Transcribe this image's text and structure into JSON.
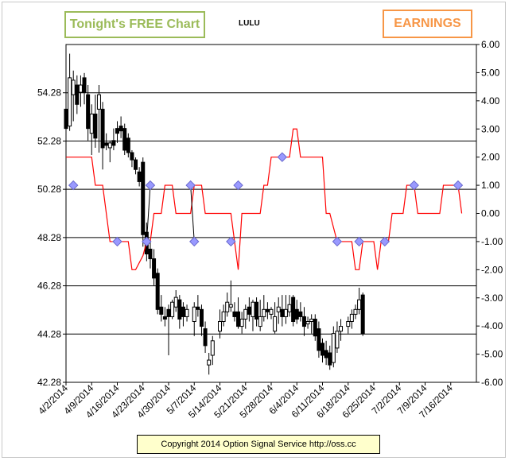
{
  "header": {
    "free_chart_label": "Tonight's FREE Chart",
    "ticker": "LULU",
    "earnings_label": "EARNINGS"
  },
  "footer": {
    "copyright": "Copyright 2014 Option Signal Service http://oss.cc"
  },
  "colors": {
    "signal_line": "#ff0000",
    "marker_fill": "#9999ff",
    "marker_stroke": "#6666cc",
    "free_badge": "#9bbb59",
    "earnings_badge": "#f79646",
    "candle": "#000000"
  },
  "chart_data": {
    "type": "candlestick",
    "title": "LULU",
    "grid": "horizontal",
    "y_left": {
      "ticks": [
        "42.28",
        "44.28",
        "46.28",
        "48.28",
        "50.28",
        "52.28",
        "54.28"
      ],
      "min": 42.28,
      "max": 56.28
    },
    "y_right": {
      "ticks": [
        "-6.00",
        "-5.00",
        "-4.00",
        "-3.00",
        "-2.00",
        "-1.00",
        "0.00",
        "1.00",
        "2.00",
        "3.00",
        "4.00",
        "5.00",
        "6.00"
      ],
      "min": -6,
      "max": 6
    },
    "x": {
      "ticks": [
        "4/2/2014",
        "4/9/2014",
        "4/16/2014",
        "4/23/2014",
        "4/30/2014",
        "5/7/2014",
        "5/14/2014",
        "5/21/2014",
        "5/28/2014",
        "6/4/2014",
        "6/11/2014",
        "6/18/2014",
        "6/25/2014",
        "7/2/2014",
        "7/9/2014",
        "7/16/2014"
      ],
      "range_days": [
        0,
        112
      ]
    },
    "candles": [
      {
        "d": 0,
        "o": 53.6,
        "h": 55.4,
        "l": 52.4,
        "c": 52.8
      },
      {
        "d": 1,
        "o": 52.9,
        "h": 55.9,
        "l": 52.7,
        "c": 54.9
      },
      {
        "d": 2,
        "o": 54.2,
        "h": 55.2,
        "l": 53.1,
        "c": 54.8
      },
      {
        "d": 3,
        "o": 54.6,
        "h": 55.0,
        "l": 53.4,
        "c": 53.8
      },
      {
        "d": 4,
        "o": 54.3,
        "h": 55.0,
        "l": 53.7,
        "c": 54.6
      },
      {
        "d": 5,
        "o": 54.9,
        "h": 55.1,
        "l": 53.8,
        "c": 54.3
      },
      {
        "d": 6,
        "o": 54.2,
        "h": 54.6,
        "l": 52.3,
        "c": 52.8
      },
      {
        "d": 7,
        "o": 52.6,
        "h": 53.8,
        "l": 51.7,
        "c": 53.4
      },
      {
        "d": 8,
        "o": 53.4,
        "h": 54.2,
        "l": 52.0,
        "c": 52.4
      },
      {
        "d": 9,
        "o": 53.6,
        "h": 54.6,
        "l": 51.8,
        "c": 54.2
      },
      {
        "d": 10,
        "o": 53.6,
        "h": 53.9,
        "l": 51.1,
        "c": 52.0
      },
      {
        "d": 11,
        "o": 52.2,
        "h": 52.6,
        "l": 51.9,
        "c": 52.1
      },
      {
        "d": 12,
        "o": 52.0,
        "h": 52.3,
        "l": 51.4,
        "c": 52.2
      },
      {
        "d": 13,
        "o": 52.3,
        "h": 52.8,
        "l": 51.9,
        "c": 52.1
      },
      {
        "d": 14,
        "o": 52.8,
        "h": 53.1,
        "l": 52.2,
        "c": 52.6
      },
      {
        "d": 15,
        "o": 52.9,
        "h": 53.3,
        "l": 52.4,
        "c": 52.7
      },
      {
        "d": 16,
        "o": 52.8,
        "h": 53.0,
        "l": 51.7,
        "c": 51.9
      },
      {
        "d": 17,
        "o": 52.4,
        "h": 52.6,
        "l": 51.6,
        "c": 51.8
      },
      {
        "d": 18,
        "o": 51.8,
        "h": 51.9,
        "l": 51.2,
        "c": 51.5
      },
      {
        "d": 19,
        "o": 51.5,
        "h": 51.6,
        "l": 50.9,
        "c": 51.1
      },
      {
        "d": 20,
        "o": 51.0,
        "h": 51.2,
        "l": 50.4,
        "c": 50.6
      },
      {
        "d": 21,
        "o": 51.4,
        "h": 51.6,
        "l": 47.9,
        "c": 48.4
      },
      {
        "d": 22,
        "o": 48.5,
        "h": 48.9,
        "l": 47.3,
        "c": 47.6
      },
      {
        "d": 23,
        "o": 47.8,
        "h": 48.1,
        "l": 47.0,
        "c": 47.4
      },
      {
        "d": 24,
        "o": 47.4,
        "h": 47.8,
        "l": 46.3,
        "c": 46.6
      },
      {
        "d": 25,
        "o": 46.8,
        "h": 47.0,
        "l": 45.1,
        "c": 45.3
      },
      {
        "d": 26,
        "o": 45.4,
        "h": 45.9,
        "l": 44.8,
        "c": 45.1
      },
      {
        "d": 27,
        "o": 45.0,
        "h": 45.4,
        "l": 44.6,
        "c": 44.9
      },
      {
        "d": 28,
        "o": 45.3,
        "h": 45.5,
        "l": 43.4,
        "c": 45.0
      },
      {
        "d": 29,
        "o": 45.0,
        "h": 45.7,
        "l": 44.9,
        "c": 45.6
      },
      {
        "d": 30,
        "o": 45.4,
        "h": 46.1,
        "l": 45.2,
        "c": 45.8
      },
      {
        "d": 31,
        "o": 45.7,
        "h": 45.9,
        "l": 44.5,
        "c": 44.9
      },
      {
        "d": 32,
        "o": 45.4,
        "h": 45.6,
        "l": 44.6,
        "c": 45.0
      },
      {
        "d": 33,
        "o": 45.0,
        "h": 45.5,
        "l": 44.8,
        "c": 45.3
      },
      {
        "d": 35,
        "o": 44.8,
        "h": 45.6,
        "l": 44.2,
        "c": 45.4
      },
      {
        "d": 36,
        "o": 45.4,
        "h": 45.9,
        "l": 45.0,
        "c": 45.3
      },
      {
        "d": 37,
        "o": 45.3,
        "h": 45.5,
        "l": 44.2,
        "c": 44.6
      },
      {
        "d": 38,
        "o": 44.5,
        "h": 44.8,
        "l": 43.5,
        "c": 43.8
      },
      {
        "d": 39,
        "o": 43.0,
        "h": 43.5,
        "l": 42.6,
        "c": 43.2
      },
      {
        "d": 40,
        "o": 43.4,
        "h": 44.2,
        "l": 43.0,
        "c": 44.0
      },
      {
        "d": 42,
        "o": 44.4,
        "h": 45.3,
        "l": 44.1,
        "c": 44.8
      },
      {
        "d": 43,
        "o": 44.8,
        "h": 45.5,
        "l": 44.6,
        "c": 45.2
      },
      {
        "d": 44,
        "o": 45.2,
        "h": 46.0,
        "l": 45.0,
        "c": 45.6
      },
      {
        "d": 45,
        "o": 45.4,
        "h": 46.5,
        "l": 45.2,
        "c": 45.5
      },
      {
        "d": 46,
        "o": 45.2,
        "h": 45.6,
        "l": 44.8,
        "c": 45.0
      },
      {
        "d": 47,
        "o": 45.2,
        "h": 45.8,
        "l": 44.5,
        "c": 44.6
      },
      {
        "d": 48,
        "o": 44.6,
        "h": 45.2,
        "l": 44.3,
        "c": 44.9
      },
      {
        "d": 49,
        "o": 44.9,
        "h": 45.5,
        "l": 44.5,
        "c": 45.3
      },
      {
        "d": 50,
        "o": 45.4,
        "h": 45.8,
        "l": 44.8,
        "c": 45.1
      },
      {
        "d": 51,
        "o": 45.0,
        "h": 45.7,
        "l": 44.4,
        "c": 45.6
      },
      {
        "d": 52,
        "o": 45.6,
        "h": 45.8,
        "l": 44.6,
        "c": 44.9
      },
      {
        "d": 53,
        "o": 44.6,
        "h": 45.7,
        "l": 44.4,
        "c": 45.0
      },
      {
        "d": 54,
        "o": 45.0,
        "h": 45.9,
        "l": 44.8,
        "c": 45.3
      },
      {
        "d": 55,
        "o": 45.3,
        "h": 45.6,
        "l": 44.9,
        "c": 45.2
      },
      {
        "d": 56,
        "o": 45.1,
        "h": 45.4,
        "l": 44.9,
        "c": 45.3
      },
      {
        "d": 57,
        "o": 44.4,
        "h": 45.6,
        "l": 44.3,
        "c": 45.0
      },
      {
        "d": 58,
        "o": 45.2,
        "h": 45.8,
        "l": 44.7,
        "c": 45.4
      },
      {
        "d": 59,
        "o": 45.3,
        "h": 45.9,
        "l": 44.6,
        "c": 45.0
      },
      {
        "d": 60,
        "o": 45.0,
        "h": 45.9,
        "l": 44.7,
        "c": 45.3
      },
      {
        "d": 61,
        "o": 45.2,
        "h": 45.9,
        "l": 45.0,
        "c": 45.5
      },
      {
        "d": 62,
        "o": 45.8,
        "h": 45.9,
        "l": 44.6,
        "c": 44.8
      },
      {
        "d": 63,
        "o": 45.3,
        "h": 45.7,
        "l": 44.7,
        "c": 44.9
      },
      {
        "d": 64,
        "o": 45.2,
        "h": 45.6,
        "l": 44.8,
        "c": 45.0
      },
      {
        "d": 65,
        "o": 45.0,
        "h": 45.4,
        "l": 44.2,
        "c": 44.6
      },
      {
        "d": 66,
        "o": 44.7,
        "h": 45.0,
        "l": 44.5,
        "c": 44.8
      },
      {
        "d": 67,
        "o": 44.8,
        "h": 45.1,
        "l": 44.3,
        "c": 44.9
      },
      {
        "d": 68,
        "o": 44.9,
        "h": 45.1,
        "l": 44.0,
        "c": 44.2
      },
      {
        "d": 69,
        "o": 44.5,
        "h": 44.8,
        "l": 43.3,
        "c": 43.6
      },
      {
        "d": 70,
        "o": 43.9,
        "h": 44.1,
        "l": 43.1,
        "c": 43.4
      },
      {
        "d": 71,
        "o": 43.6,
        "h": 44.0,
        "l": 43.0,
        "c": 43.3
      },
      {
        "d": 72,
        "o": 43.5,
        "h": 43.8,
        "l": 42.8,
        "c": 43.0
      },
      {
        "d": 73,
        "o": 43.1,
        "h": 44.6,
        "l": 42.9,
        "c": 44.3
      },
      {
        "d": 74,
        "o": 43.7,
        "h": 44.8,
        "l": 43.5,
        "c": 44.4
      },
      {
        "d": 75,
        "o": 44.4,
        "h": 44.9,
        "l": 44.0,
        "c": 44.6
      },
      {
        "d": 77,
        "o": 44.6,
        "h": 45.0,
        "l": 44.3,
        "c": 44.8
      },
      {
        "d": 78,
        "o": 44.8,
        "h": 45.3,
        "l": 44.5,
        "c": 45.1
      },
      {
        "d": 79,
        "o": 45.1,
        "h": 45.5,
        "l": 44.9,
        "c": 45.3
      },
      {
        "d": 80,
        "o": 45.3,
        "h": 46.2,
        "l": 45.1,
        "c": 45.7
      },
      {
        "d": 81,
        "o": 45.9,
        "h": 46.0,
        "l": 44.2,
        "c": 44.3
      }
    ],
    "signal_line": [
      {
        "d": 0,
        "v": 2
      },
      {
        "d": 7,
        "v": 2
      },
      {
        "d": 8,
        "v": 1
      },
      {
        "d": 10,
        "v": 1
      },
      {
        "d": 12,
        "v": -1
      },
      {
        "d": 17,
        "v": -1
      },
      {
        "d": 18,
        "v": -2
      },
      {
        "d": 19,
        "v": -2
      },
      {
        "d": 21,
        "v": -1.5
      },
      {
        "d": 22,
        "v": -1
      },
      {
        "d": 23,
        "v": -1
      },
      {
        "d": 24,
        "v": 0
      },
      {
        "d": 26,
        "v": 0
      },
      {
        "d": 27,
        "v": 1
      },
      {
        "d": 29,
        "v": 1
      },
      {
        "d": 30,
        "v": 0
      },
      {
        "d": 34,
        "v": 0
      },
      {
        "d": 35,
        "v": 1
      },
      {
        "d": 37,
        "v": 1
      },
      {
        "d": 38,
        "v": 0
      },
      {
        "d": 45,
        "v": 0
      },
      {
        "d": 46,
        "v": -1
      },
      {
        "d": 47,
        "v": -2
      },
      {
        "d": 48,
        "v": 0
      },
      {
        "d": 53,
        "v": 0
      },
      {
        "d": 54,
        "v": 1
      },
      {
        "d": 55,
        "v": 1
      },
      {
        "d": 56,
        "v": 2
      },
      {
        "d": 61,
        "v": 2
      },
      {
        "d": 62,
        "v": 3
      },
      {
        "d": 63,
        "v": 3
      },
      {
        "d": 64,
        "v": 2
      },
      {
        "d": 70,
        "v": 2
      },
      {
        "d": 71,
        "v": 0
      },
      {
        "d": 72,
        "v": 0
      },
      {
        "d": 74,
        "v": -1
      },
      {
        "d": 78,
        "v": -1
      },
      {
        "d": 79,
        "v": -2
      },
      {
        "d": 80,
        "v": -2
      },
      {
        "d": 81,
        "v": -1
      },
      {
        "d": 84,
        "v": -1
      },
      {
        "d": 85,
        "v": -2
      },
      {
        "d": 86,
        "v": -1
      },
      {
        "d": 88,
        "v": -1
      },
      {
        "d": 89,
        "v": 0
      },
      {
        "d": 92,
        "v": 0
      },
      {
        "d": 93,
        "v": 1
      },
      {
        "d": 95,
        "v": 1
      },
      {
        "d": 96,
        "v": 0
      },
      {
        "d": 102,
        "v": 0
      },
      {
        "d": 103,
        "v": 1
      },
      {
        "d": 107,
        "v": 1
      },
      {
        "d": 108,
        "v": 0
      }
    ],
    "markers": [
      {
        "d": 2,
        "v": 1
      },
      {
        "d": 14,
        "v": -1
      },
      {
        "d": 22,
        "v": -1
      },
      {
        "d": 23,
        "v": 1
      },
      {
        "d": 34,
        "v": 1
      },
      {
        "d": 35,
        "v": -1
      },
      {
        "d": 45,
        "v": -1
      },
      {
        "d": 47,
        "v": 1
      },
      {
        "d": 59,
        "v": 2
      },
      {
        "d": 74,
        "v": -1
      },
      {
        "d": 80,
        "v": -1
      },
      {
        "d": 87,
        "v": -1
      },
      {
        "d": 95,
        "v": 1
      },
      {
        "d": 107,
        "v": 1
      }
    ],
    "marker_connectors": [
      [
        {
          "d": 22,
          "v": -1
        },
        {
          "d": 23,
          "v": 1
        }
      ],
      [
        {
          "d": 34,
          "v": 1
        },
        {
          "d": 35,
          "v": -1
        }
      ]
    ]
  }
}
